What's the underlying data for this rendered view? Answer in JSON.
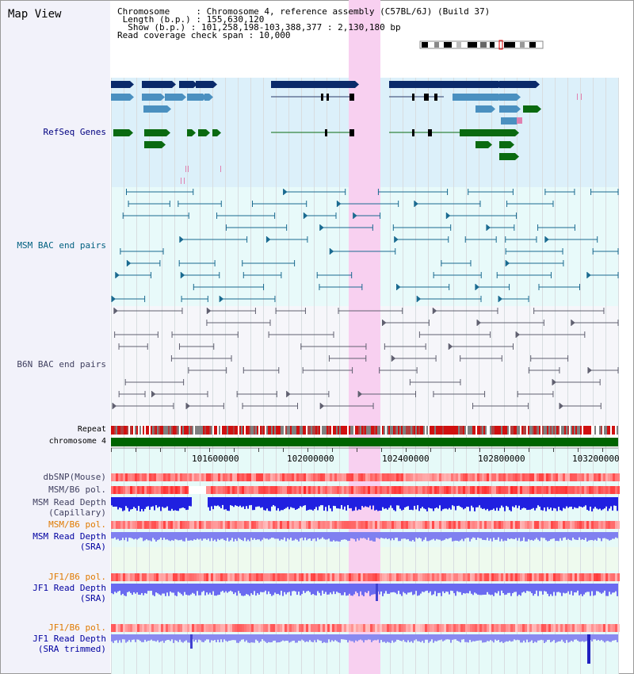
{
  "page_title": "Map View",
  "info": {
    "chromosome_line": "Chromosome     : Chromosome 4, reference assembly (C57BL/6J) (Build 37)",
    "length_line": " Length (b.p.) : 155,630,120",
    "show_line": "  Show (b.p.) : 101,258,198-103,388,377 : 2,130,180 bp",
    "coverage_line": "Read coverage check span : 10,000"
  },
  "tracks": {
    "refseq": "RefSeq Genes",
    "msm_bac": "MSM BAC end pairs",
    "b6n_bac": "B6N BAC end pairs",
    "repeat": "Repeat",
    "chromosome": "chromosome 4",
    "dbsnp": "dbSNP(Mouse)",
    "msm_b6_pol_1": "MSM/B6 pol.",
    "msm_depth_cap_1": "MSM Read Depth",
    "msm_depth_cap_2": "(Capillary)",
    "msm_b6_pol_2": "MSM/B6 pol.",
    "msm_depth_sra_1": "MSM Read Depth",
    "msm_depth_sra_2": "(SRA)",
    "jf1_pol_1": "JF1/B6 pol.",
    "jf1_depth_sra_1": "JF1 Read Depth",
    "jf1_depth_sra_2": "(SRA)",
    "jf1_pol_2": "JF1/B6 pol.",
    "jf1_depth_trim_1": "JF1 Read Depth",
    "jf1_depth_trim_2": "(SRA trimmed)"
  },
  "axis_ticks": [
    "101600000",
    "102000000",
    "102400000",
    "102800000",
    "103200000"
  ],
  "colors": {
    "refseq_dark": "#0a2a6a",
    "refseq_mid": "#4a90c0",
    "refseq_green": "#0a6a10",
    "highlight": "#f8d0f0",
    "chrom_bar": "#006400"
  }
}
